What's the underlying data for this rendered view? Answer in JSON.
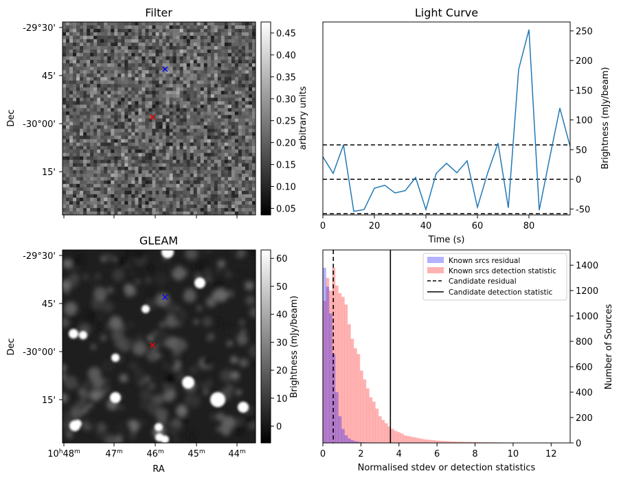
{
  "panels": {
    "filter": {
      "title": "Filter",
      "ylabel": "Dec",
      "yticks": [
        "-29°30'",
        "45'",
        "-30°00'",
        "15'"
      ],
      "colorbar": {
        "label": "arbitrary units",
        "range": [
          0.035,
          0.475
        ],
        "ticks": [
          "0.05",
          "0.10",
          "0.15",
          "0.20",
          "0.25",
          "0.30",
          "0.35",
          "0.40",
          "0.45"
        ],
        "tick_values": [
          0.05,
          0.1,
          0.15,
          0.2,
          0.25,
          0.3,
          0.35,
          0.4,
          0.45
        ]
      },
      "markers": [
        {
          "kind": "x",
          "color": "#0000ff",
          "ra_min": 45.6,
          "dec_arcmin": -43
        },
        {
          "kind": "x",
          "color": "#ff0000",
          "ra_min": 45.9,
          "dec_arcmin": -58
        }
      ]
    },
    "gleam": {
      "title": "GLEAM",
      "xlabel": "RA",
      "ylabel": "Dec",
      "xticks": [
        {
          "h": "10",
          "m": "48",
          "prefix": true
        },
        {
          "m": "47"
        },
        {
          "m": "46"
        },
        {
          "m": "45"
        },
        {
          "m": "44"
        }
      ],
      "yticks": [
        "-29°30'",
        "45'",
        "-30°00'",
        "15'"
      ],
      "colorbar": {
        "label": "Brightness (mJy/beam)",
        "range": [
          -6,
          63
        ],
        "ticks": [
          "0",
          "10",
          "20",
          "30",
          "40",
          "50",
          "60"
        ],
        "tick_values": [
          0,
          10,
          20,
          30,
          40,
          50,
          60
        ]
      },
      "markers": [
        {
          "kind": "x",
          "color": "#0000ff",
          "ra_min": 45.6,
          "dec_arcmin": -43
        },
        {
          "kind": "x",
          "color": "#ff0000",
          "ra_min": 45.9,
          "dec_arcmin": -58
        }
      ]
    }
  },
  "chart_data": [
    {
      "type": "line",
      "title": "Light Curve",
      "xlabel": "Time (s)",
      "ylabel": "Brightness (mJy/beam)",
      "xlim": [
        0,
        96
      ],
      "ylim": [
        -60,
        265
      ],
      "xticks": [
        0,
        20,
        40,
        60,
        80
      ],
      "yticks": [
        -50,
        0,
        50,
        100,
        150,
        200,
        250
      ],
      "color": "#1f77b4",
      "x": [
        0,
        4,
        8,
        12,
        16,
        20,
        24,
        28,
        32,
        36,
        40,
        44,
        48,
        52,
        56,
        60,
        64,
        68,
        72,
        76,
        80,
        84,
        88,
        92,
        96
      ],
      "y": [
        38,
        10,
        58,
        -54,
        -51,
        -15,
        -10,
        -23,
        -19,
        3,
        -51,
        10,
        27,
        11,
        31,
        -47,
        11,
        61,
        -48,
        185,
        252,
        -52,
        35,
        120,
        55
      ],
      "hlines": [
        {
          "y": 58,
          "style": "dashed",
          "color": "#000000"
        },
        {
          "y": 0,
          "style": "dashed",
          "color": "#000000"
        },
        {
          "y": -58,
          "style": "dashed",
          "color": "#000000"
        }
      ]
    },
    {
      "type": "histogram",
      "xlabel": "Normalised stdev or detection statistics",
      "ylabel": "Number of Sources",
      "xlim": [
        0,
        13
      ],
      "ylim": [
        0,
        1520
      ],
      "xticks": [
        0,
        2,
        4,
        6,
        8,
        10,
        12
      ],
      "yticks": [
        0,
        200,
        400,
        600,
        800,
        1000,
        1200,
        1400
      ],
      "bin_width": 0.1625,
      "legend_position": "top-right",
      "series": [
        {
          "name": "Known srcs residual",
          "color": "#0000ff",
          "alpha": 0.3,
          "bin_start": 0,
          "values": [
            1380,
            1230,
            1020,
            700,
            400,
            210,
            110,
            60,
            35,
            22,
            14,
            9,
            6,
            4,
            3,
            2,
            1
          ]
        },
        {
          "name": "Known srcs detection statistic",
          "color": "#ff0000",
          "alpha": 0.3,
          "bin_start": 0,
          "values": [
            1120,
            1300,
            1200,
            1380,
            1240,
            1180,
            1150,
            1090,
            935,
            820,
            745,
            700,
            570,
            500,
            430,
            360,
            325,
            270,
            210,
            180,
            155,
            130,
            110,
            95,
            85,
            75,
            60,
            55,
            50,
            45,
            40,
            35,
            30,
            27,
            25,
            22,
            20,
            18,
            16,
            15,
            14,
            12,
            11,
            10,
            10,
            9,
            8,
            8,
            7,
            7,
            6,
            6,
            5,
            5,
            5,
            4,
            4,
            4,
            3,
            3,
            3,
            3,
            3,
            2,
            2,
            2,
            2,
            2,
            2,
            2,
            1,
            1,
            1,
            1,
            1,
            1,
            1,
            1,
            1
          ]
        }
      ],
      "vlines": [
        {
          "x": 0.55,
          "name": "Candidate residual",
          "style": "dashed",
          "color": "#000000"
        },
        {
          "x": 3.55,
          "name": "Candidate detection statistic",
          "style": "solid",
          "color": "#000000"
        }
      ]
    }
  ]
}
